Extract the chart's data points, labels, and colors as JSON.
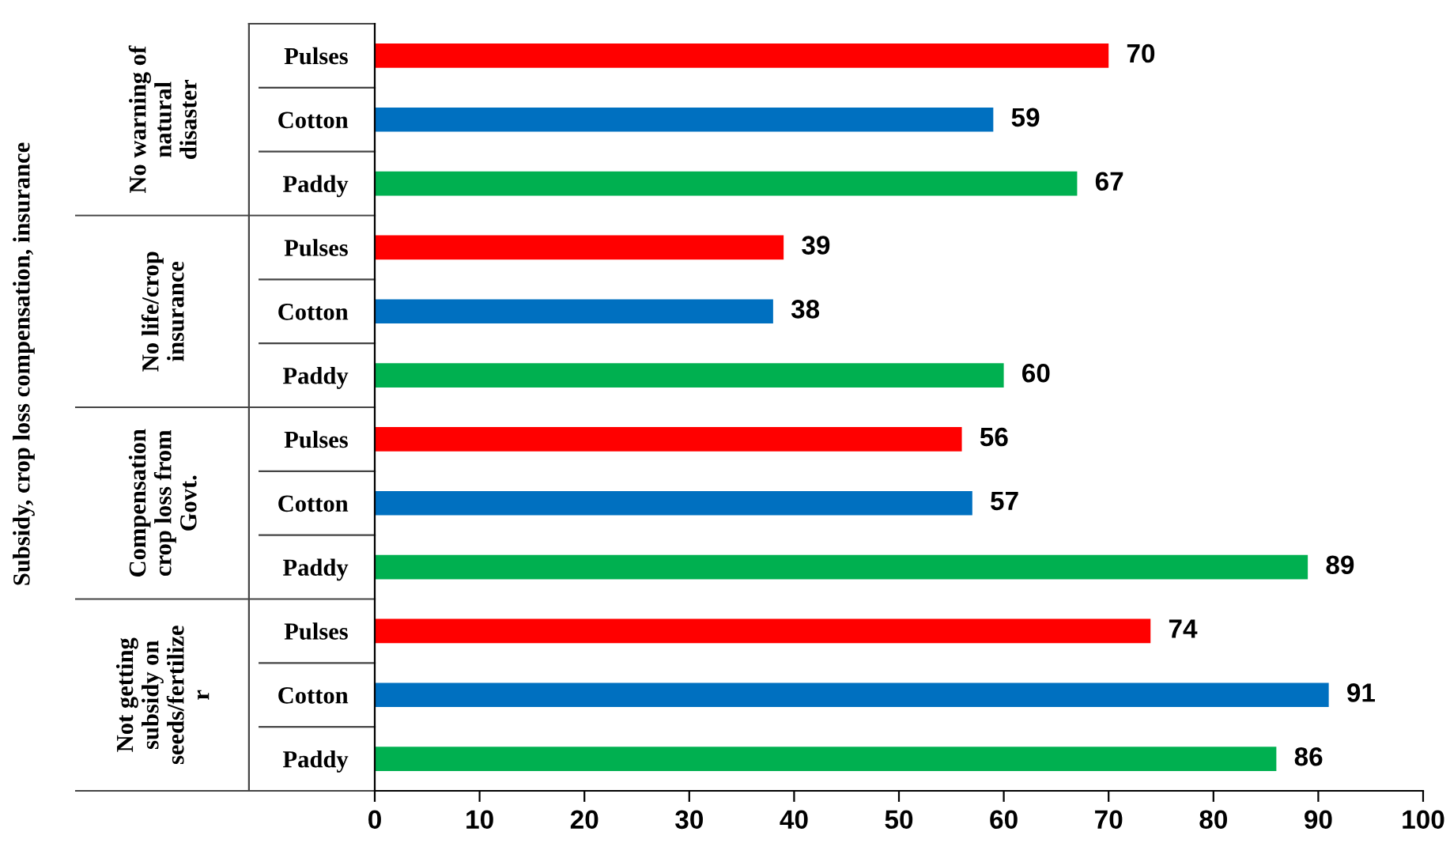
{
  "chart_data": {
    "type": "bar",
    "orientation": "horizontal",
    "categories": [
      "Pulses",
      "Cotton",
      "Paddy",
      "Pulses",
      "Cotton",
      "Paddy",
      "Pulses",
      "Cotton",
      "Paddy",
      "Pulses",
      "Cotton",
      "Paddy"
    ],
    "values": [
      70,
      59,
      67,
      39,
      38,
      60,
      56,
      57,
      89,
      74,
      91,
      86
    ],
    "colors": [
      "#ff0000",
      "#0070c0",
      "#00b050",
      "#ff0000",
      "#0070c0",
      "#00b050",
      "#ff0000",
      "#0070c0",
      "#00b050",
      "#ff0000",
      "#0070c0",
      "#00b050"
    ],
    "annotations": [
      "No warning of\nnatural\ndisaster",
      "No life/crop\ninsurance",
      "Compensation\ncrop loss from\nGovt.",
      "Not getting\nsubsidy on\nseeds/fertilize\nr",
      "Subsidy, crop loss compensation, insurance"
    ],
    "xlim": [
      0,
      100
    ],
    "xticks": [
      0,
      10,
      20,
      30,
      40,
      50,
      60,
      70,
      80,
      90,
      100
    ],
    "data_labels": true,
    "grid": false,
    "legend": false
  }
}
